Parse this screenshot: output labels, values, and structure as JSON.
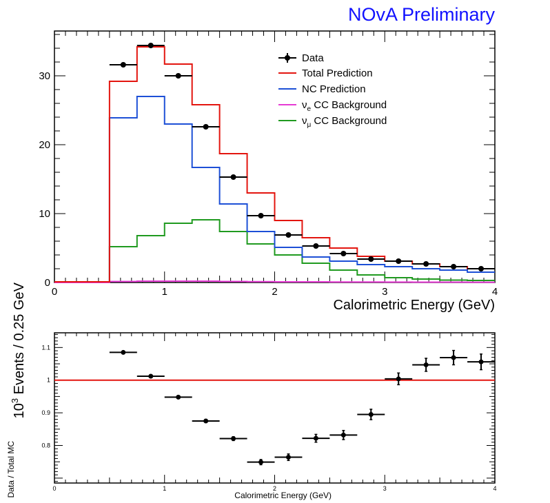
{
  "watermark": "NOvA Preliminary",
  "colors": {
    "data": "#000000",
    "total": "#e3140e",
    "nc": "#1c4fd6",
    "nue": "#e53ad4",
    "numu": "#1f9a1f",
    "watermark": "#1212ff",
    "ratio_line": "#e3140e"
  },
  "chart_data": [
    {
      "type": "line",
      "xlabel": "Calorimetric Energy (GeV)",
      "ylabel": "10³ Events / 0.25 GeV",
      "ylabel_base": "10",
      "ylabel_exp": "3",
      "ylabel_rest": " Events / 0.25 GeV",
      "xlim": [
        0,
        4
      ],
      "ylim": [
        0,
        36.5
      ],
      "x_ticks": [
        "0",
        "1",
        "2",
        "3",
        "4"
      ],
      "y_ticks": [
        "0",
        "10",
        "20",
        "30"
      ],
      "bin_edges": [
        0,
        0.25,
        0.5,
        0.75,
        1.0,
        1.25,
        1.5,
        1.75,
        2.0,
        2.25,
        2.5,
        2.75,
        3.0,
        3.25,
        3.5,
        3.75,
        4.0
      ],
      "legend": {
        "position": "top-right",
        "entries": [
          {
            "key": "data",
            "label": "Data",
            "marker": "point"
          },
          {
            "key": "total",
            "label": "Total Prediction",
            "marker": "line"
          },
          {
            "key": "nc",
            "label": "NC Prediction",
            "marker": "line"
          },
          {
            "key": "nue",
            "label_main": "ν",
            "label_sub": "e",
            "label_rest": " CC Background",
            "marker": "line"
          },
          {
            "key": "numu",
            "label_main": "ν",
            "label_sub": "μ",
            "label_rest": " CC Background",
            "marker": "line"
          }
        ]
      },
      "series": [
        {
          "key": "total",
          "name": "Total Prediction",
          "values": [
            0.1,
            0.1,
            29.2,
            34.2,
            31.7,
            25.8,
            18.7,
            13.0,
            9.0,
            6.5,
            5.0,
            3.8,
            3.1,
            2.7,
            2.3,
            2.0
          ]
        },
        {
          "key": "nc",
          "name": "NC Prediction",
          "values": [
            0.1,
            0.1,
            23.9,
            27.0,
            23.0,
            16.7,
            11.4,
            7.4,
            5.1,
            3.7,
            3.1,
            2.6,
            2.3,
            2.0,
            1.8,
            1.5
          ]
        },
        {
          "key": "nue",
          "name": "νe CC Background",
          "values": [
            0.0,
            0.0,
            0.15,
            0.2,
            0.2,
            0.2,
            0.15,
            0.12,
            0.1,
            0.1,
            0.08,
            0.07,
            0.06,
            0.05,
            0.05,
            0.04
          ]
        },
        {
          "key": "numu",
          "name": "νμ CC Background",
          "values": [
            0.1,
            0.1,
            5.2,
            6.8,
            8.6,
            9.1,
            7.4,
            5.6,
            4.0,
            2.8,
            1.8,
            1.1,
            0.7,
            0.5,
            0.35,
            0.3
          ]
        },
        {
          "key": "data",
          "name": "Data",
          "x": [
            0.625,
            0.875,
            1.125,
            1.375,
            1.625,
            1.875,
            2.125,
            2.375,
            2.625,
            2.875,
            3.125,
            3.375,
            3.625,
            3.875
          ],
          "values": [
            31.6,
            34.4,
            30.0,
            22.6,
            15.3,
            9.7,
            6.9,
            5.3,
            4.2,
            3.4,
            3.1,
            2.7,
            2.3,
            2.0
          ]
        }
      ]
    },
    {
      "type": "scatter",
      "xlabel": "Calorimetric Energy (GeV)",
      "ylabel": "Data / Total MC",
      "xlim": [
        0,
        4
      ],
      "ylim": [
        0.685,
        1.145
      ],
      "x_ticks": [
        "0",
        "1",
        "2",
        "3",
        "4"
      ],
      "y_ticks": [
        {
          "v": 0.8,
          "label": "0.8"
        },
        {
          "v": 0.9,
          "label": "0.9"
        },
        {
          "v": 1.0,
          "label": "1"
        },
        {
          "v": 1.1,
          "label": "1.1"
        }
      ],
      "reference_line": 1.0,
      "x": [
        0.625,
        0.875,
        1.125,
        1.375,
        1.625,
        1.875,
        2.125,
        2.375,
        2.625,
        2.875,
        3.125,
        3.375,
        3.625,
        3.875
      ],
      "values": [
        1.085,
        1.012,
        0.948,
        0.875,
        0.821,
        0.749,
        0.764,
        0.822,
        0.832,
        0.895,
        1.004,
        1.047,
        1.069,
        1.056
      ],
      "errors": [
        0.003,
        0.004,
        0.004,
        0.005,
        0.006,
        0.008,
        0.01,
        0.012,
        0.014,
        0.016,
        0.018,
        0.02,
        0.022,
        0.024
      ],
      "x_half_width": 0.125
    }
  ]
}
